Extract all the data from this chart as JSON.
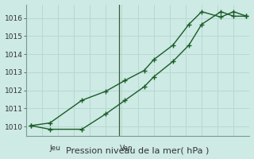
{
  "xlabel": "Pression niveau de la mer( hPa )",
  "background_color": "#cdeae4",
  "grid_color": "#b8d8d2",
  "line_color": "#1a5c28",
  "vline_color": "#3a5a3a",
  "ylim": [
    1009.5,
    1016.75
  ],
  "xlim": [
    0,
    14
  ],
  "yticks": [
    1010,
    1011,
    1012,
    1013,
    1014,
    1015,
    1016
  ],
  "xticks_major": [
    2,
    6
  ],
  "xtick_labels": [
    "Jeu",
    "Ven"
  ],
  "vline_x": 5.85,
  "line1_x": [
    0.3,
    1.5,
    3.5,
    5.0,
    6.2,
    7.4,
    8.0,
    9.2,
    10.2,
    11.0,
    12.2,
    13.0,
    13.8
  ],
  "line1_y": [
    1010.05,
    1009.85,
    1009.85,
    1010.7,
    1011.45,
    1012.2,
    1012.75,
    1013.6,
    1014.5,
    1015.65,
    1016.35,
    1016.1,
    1016.1
  ],
  "line2_x": [
    0.3,
    1.5,
    3.5,
    5.0,
    6.2,
    7.4,
    8.0,
    9.2,
    10.2,
    11.0,
    12.2,
    13.0,
    13.8
  ],
  "line2_y": [
    1010.05,
    1010.2,
    1011.45,
    1011.95,
    1012.55,
    1013.1,
    1013.7,
    1014.5,
    1015.65,
    1016.35,
    1016.05,
    1016.35,
    1016.1
  ],
  "xlabel_fontsize": 8,
  "ytick_fontsize": 6.5,
  "xtick_fontsize": 6.5
}
